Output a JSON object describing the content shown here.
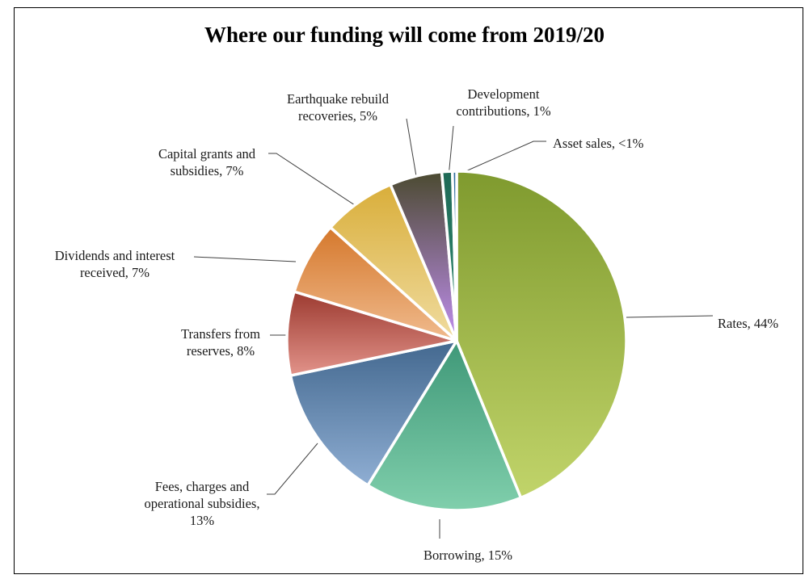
{
  "chart_data": {
    "type": "pie",
    "title": "Where our funding will come from 2019/20",
    "unit": "%",
    "slices": [
      {
        "label": "Rates, 44%",
        "value": 44,
        "color_dark": "#7f9a2e",
        "color_light": "#c1d46a"
      },
      {
        "label": "Borrowing, 15%",
        "value": 15,
        "color_dark": "#3f9878",
        "color_light": "#80cfac"
      },
      {
        "label": "Fees, charges and operational subsidies, 13%",
        "value": 13,
        "color_dark": "#43688f",
        "color_light": "#8faed3"
      },
      {
        "label": "Transfers from reserves, 8%",
        "value": 8,
        "color_dark": "#9c3a30",
        "color_light": "#e2938a"
      },
      {
        "label": "Dividends and interest received, 7%",
        "value": 7,
        "color_dark": "#d5782c",
        "color_light": "#f0bb8e"
      },
      {
        "label": "Capital grants and subsidies, 7%",
        "value": 7,
        "color_dark": "#d9ae3a",
        "color_light": "#f0dca0"
      },
      {
        "label": "Earthquake rebuild recoveries, 5%",
        "value": 5,
        "color_dark": "#4b4a30",
        "color_light": "#c08ef0"
      },
      {
        "label": "Development contributions, 1%",
        "value": 1,
        "color_dark": "#1f6a56",
        "color_light": "#2f8a72"
      },
      {
        "label": "Asset sales, <1%",
        "value": 0.4,
        "color_dark": "#2b6a9a",
        "color_light": "#4a8ac0"
      }
    ]
  },
  "labels": {
    "rates": "Rates, 44%",
    "borrowing": "Borrowing, 15%",
    "fees_l1": "Fees, charges and",
    "fees_l2": "operational subsidies,",
    "fees_l3": "13%",
    "transfers_l1": "Transfers from",
    "transfers_l2": "reserves, 8%",
    "dividends_l1": "Dividends and interest",
    "dividends_l2": "received, 7%",
    "capital_l1": "Capital grants and",
    "capital_l2": "subsidies, 7%",
    "earthquake_l1": "Earthquake rebuild",
    "earthquake_l2": "recoveries, 5%",
    "development_l1": "Development",
    "development_l2": "contributions, 1%",
    "asset": "Asset sales, <1%"
  }
}
